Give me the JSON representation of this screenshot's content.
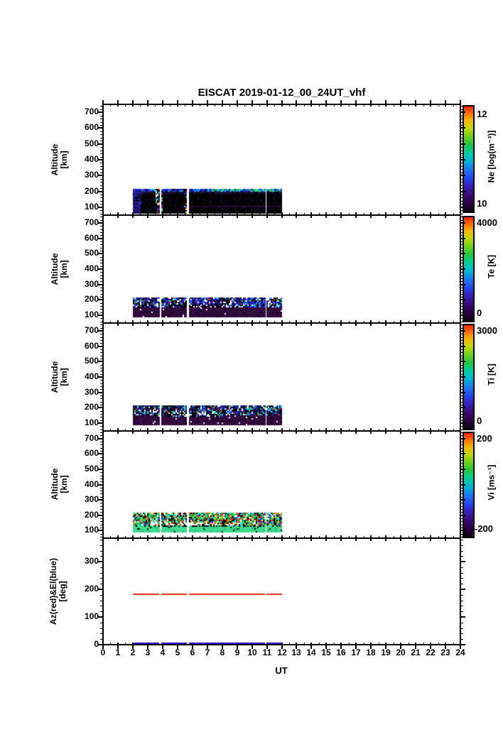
{
  "chart_data": {
    "type": "heatmap",
    "title": "EISCAT 2019-01-12_00_24UT_vhf",
    "xlabel": "UT",
    "x_range": [
      0,
      24
    ],
    "x_major_step": 1,
    "x_minor_step": 0.5,
    "x_tick_labels": [
      "0",
      "1",
      "2",
      "3",
      "4",
      "5",
      "6",
      "7",
      "8",
      "9",
      "10",
      "11",
      "12",
      "13",
      "14",
      "15",
      "16",
      "17",
      "18",
      "19",
      "20",
      "21",
      "22",
      "23",
      "24"
    ],
    "ut_extent": [
      2.0,
      12.0
    ],
    "gaps_ut": [
      [
        3.77,
        3.9
      ],
      [
        5.65,
        5.76
      ],
      [
        10.86,
        10.98
      ]
    ],
    "colormap": [
      {
        "pos": 0.0,
        "color": "#0d0015"
      },
      {
        "pos": 0.08,
        "color": "#2a0040"
      },
      {
        "pos": 0.16,
        "color": "#3c0a77"
      },
      {
        "pos": 0.24,
        "color": "#3520b8"
      },
      {
        "pos": 0.32,
        "color": "#2445ee"
      },
      {
        "pos": 0.4,
        "color": "#1e78f0"
      },
      {
        "pos": 0.48,
        "color": "#00b4d8"
      },
      {
        "pos": 0.56,
        "color": "#00cf9f"
      },
      {
        "pos": 0.64,
        "color": "#1fc741"
      },
      {
        "pos": 0.72,
        "color": "#74d11c"
      },
      {
        "pos": 0.8,
        "color": "#c6d60e"
      },
      {
        "pos": 0.87,
        "color": "#f5b50c"
      },
      {
        "pos": 0.93,
        "color": "#f97306"
      },
      {
        "pos": 1.0,
        "color": "#ee2409"
      }
    ],
    "panels": [
      {
        "name": "Ne",
        "ylabel_lines": [
          "Altitude",
          "[km]"
        ],
        "y_range": [
          50,
          750
        ],
        "y_tick_labels": [
          "100",
          "200",
          "300",
          "400",
          "500",
          "600",
          "700"
        ],
        "y_ticks": [
          100,
          200,
          300,
          400,
          500,
          600,
          700
        ],
        "y_minor_step": 20,
        "alt_extent": [
          65,
          214
        ],
        "colorbar": {
          "unit_label": "Ne [log(m⁻³)]",
          "max_label": "12",
          "min_label": "10",
          "range": [
            10,
            12
          ]
        },
        "bands": [
          {
            "alt": [
              65,
              183
            ],
            "palette": [
              [
                "#000000",
                0.8
              ],
              [
                "#0d0618",
                0.14
              ],
              [
                "#1f0b33",
                0.06
              ]
            ]
          },
          {
            "alt": [
              183,
              204
            ],
            "palette": [
              [
                "#05050f",
                0.45
              ],
              [
                "#15152f",
                0.3
              ],
              [
                "#26104a",
                0.25
              ]
            ]
          },
          {
            "alt": [
              204,
              214
            ],
            "ut": [
              2.0,
              7.2
            ],
            "palette": [
              [
                "#2233dd",
                0.45
              ],
              [
                "#1a1aaa",
                0.2
              ],
              [
                "#33bbee",
                0.15
              ],
              [
                "#000022",
                0.2
              ]
            ]
          },
          {
            "alt": [
              204,
              214
            ],
            "ut": [
              7.2,
              12.0
            ],
            "palette": [
              [
                "#22ddcc",
                0.3
              ],
              [
                "#33cc44",
                0.2
              ],
              [
                "#2233dd",
                0.3
              ],
              [
                "#55ee88",
                0.1
              ],
              [
                "#1a1aaa",
                0.1
              ]
            ]
          },
          {
            "alt": [
              98,
              110
            ],
            "ut": [
              5.8,
              12.0
            ],
            "palette": [
              [
                "#2a0d44",
                0.55
              ],
              [
                "#170726",
                0.45
              ]
            ]
          },
          {
            "alt": [
              65,
              205
            ],
            "ut": [
              2.0,
              2.6
            ],
            "palette": [
              [
                "#2222cc",
                0.3
              ],
              [
                "#311166",
                0.3
              ],
              [
                "#0a0a22",
                0.4
              ]
            ]
          },
          {
            "alt": [
              65,
              214
            ],
            "ut": [
              3.55,
              3.95
            ],
            "palette": [
              [
                "#000000",
                0.5
              ],
              [
                "#dd2211",
                0.08
              ],
              [
                "#33cc44",
                0.08
              ],
              [
                "#eeee33",
                0.05
              ],
              [
                "#ffffff",
                0.06
              ],
              [
                "#2233dd",
                0.13
              ],
              [
                "#22ddcc",
                0.1
              ]
            ]
          },
          {
            "alt": [
              65,
              214
            ],
            "ut": [
              5.45,
              5.68
            ],
            "palette": [
              [
                "#000000",
                0.5
              ],
              [
                "#dd2211",
                0.08
              ],
              [
                "#33cc44",
                0.08
              ],
              [
                "#eeee33",
                0.05
              ],
              [
                "#ffffff",
                0.06
              ],
              [
                "#2233dd",
                0.13
              ],
              [
                "#22ddcc",
                0.1
              ]
            ]
          }
        ]
      },
      {
        "name": "Te",
        "ylabel_lines": [
          "Altitude",
          "[km]"
        ],
        "y_range": [
          50,
          750
        ],
        "y_tick_labels": [
          "100",
          "200",
          "300",
          "400",
          "500",
          "600",
          "700"
        ],
        "y_ticks": [
          100,
          200,
          300,
          400,
          500,
          600,
          700
        ],
        "y_minor_step": 20,
        "alt_extent": [
          88,
          215
        ],
        "colorbar": {
          "unit_label": "Te [K]",
          "max_label": "4000",
          "min_label": "0",
          "range": [
            0,
            4000
          ]
        },
        "bands": [
          {
            "alt": [
              150,
              215
            ],
            "palette": [
              [
                "#2227c9",
                0.27
              ],
              [
                "#3a43ee",
                0.13
              ],
              [
                "#000000",
                0.2
              ],
              [
                "#ffffff",
                0.12
              ],
              [
                "#22bbdd",
                0.08
              ],
              [
                "#140a38",
                0.14
              ],
              [
                "#33cc55",
                0.04
              ],
              [
                "#dd2222",
                0.02
              ]
            ]
          },
          {
            "alt": [
              88,
              150
            ],
            "palette": [
              [
                "#2e0a3a",
                0.82
              ],
              [
                "#3b1149",
                0.12
              ],
              [
                "#000000",
                0.03
              ],
              [
                "#ffffff",
                0.03
              ]
            ]
          },
          {
            "alt": [
              150,
              172
            ],
            "ut": [
              4.4,
              8.4
            ],
            "palette": [
              [
                "#000000",
                0.55
              ],
              [
                "#ffffff",
                0.2
              ],
              [
                "#2227c9",
                0.15
              ],
              [
                "#140a38",
                0.1
              ]
            ]
          }
        ]
      },
      {
        "name": "Ti",
        "ylabel_lines": [
          "Altitude",
          "[km]"
        ],
        "y_range": [
          50,
          750
        ],
        "y_tick_labels": [
          "100",
          "200",
          "300",
          "400",
          "500",
          "600",
          "700"
        ],
        "y_ticks": [
          100,
          200,
          300,
          400,
          500,
          600,
          700
        ],
        "y_minor_step": 20,
        "alt_extent": [
          88,
          215
        ],
        "colorbar": {
          "unit_label": "Ti [K]",
          "max_label": "3000",
          "min_label": "0",
          "range": [
            0,
            3000
          ]
        },
        "bands": [
          {
            "alt": [
              150,
              215
            ],
            "palette": [
              [
                "#2233cc",
                0.22
              ],
              [
                "#000000",
                0.24
              ],
              [
                "#ffffff",
                0.1
              ],
              [
                "#33ccdd",
                0.1
              ],
              [
                "#33cc44",
                0.06
              ],
              [
                "#dd3311",
                0.03
              ],
              [
                "#1a0d44",
                0.25
              ]
            ]
          },
          {
            "alt": [
              88,
              150
            ],
            "palette": [
              [
                "#310a3d",
                0.83
              ],
              [
                "#41124e",
                0.1
              ],
              [
                "#000000",
                0.04
              ],
              [
                "#ffffff",
                0.03
              ]
            ]
          },
          {
            "alt": [
              148,
              170
            ],
            "ut": [
              4.3,
              8.0
            ],
            "palette": [
              [
                "#000000",
                0.5
              ],
              [
                "#ffffff",
                0.22
              ],
              [
                "#2233cc",
                0.18
              ],
              [
                "#33ccdd",
                0.1
              ]
            ]
          }
        ]
      },
      {
        "name": "Vi",
        "ylabel_lines": [
          "Altitude",
          "[km]"
        ],
        "y_range": [
          50,
          750
        ],
        "y_tick_labels": [
          "100",
          "200",
          "300",
          "400",
          "500",
          "600",
          "700"
        ],
        "y_ticks": [
          100,
          200,
          300,
          400,
          500,
          600,
          700
        ],
        "y_minor_step": 20,
        "alt_extent": [
          88,
          215
        ],
        "colorbar": {
          "unit_label": "Vi [ms⁻¹]",
          "max_label": "200",
          "min_label": "-200",
          "range": [
            -200,
            200
          ]
        },
        "bands": [
          {
            "alt": [
              130,
              215
            ],
            "palette": [
              [
                "#33cc44",
                0.2
              ],
              [
                "#22ddcc",
                0.17
              ],
              [
                "#dd2211",
                0.12
              ],
              [
                "#000000",
                0.17
              ],
              [
                "#ffffff",
                0.1
              ],
              [
                "#2233dd",
                0.08
              ],
              [
                "#ccdd22",
                0.05
              ],
              [
                "#ff8822",
                0.04
              ],
              [
                "#117733",
                0.07
              ]
            ]
          },
          {
            "alt": [
              130,
              154
            ],
            "ut": [
              3.2,
              9.2
            ],
            "palette": [
              [
                "#ffffff",
                0.45
              ],
              [
                "#dd2211",
                0.25
              ],
              [
                "#000000",
                0.15
              ],
              [
                "#33cc44",
                0.15
              ]
            ]
          },
          {
            "alt": [
              124,
              132
            ],
            "palette": [
              [
                "#000000",
                0.45
              ],
              [
                "#3fd98f",
                0.55
              ]
            ]
          },
          {
            "alt": [
              88,
              124
            ],
            "palette": [
              [
                "#3fd98f",
                0.86
              ],
              [
                "#2ab877",
                0.1
              ],
              [
                "#000000",
                0.04
              ]
            ]
          }
        ]
      },
      {
        "name": "AzEl",
        "ylabel_lines": [
          "Az(red)&El(blue)",
          "[deg]"
        ],
        "y_range": [
          0,
          385
        ],
        "y_tick_labels": [
          "0",
          "100",
          "200",
          "300"
        ],
        "y_ticks": [
          0,
          100,
          200,
          300
        ],
        "y_minor_step": 20,
        "lines": [
          {
            "name": "azimuth",
            "color": "#ee2211",
            "value_deg": 183
          },
          {
            "name": "elevation",
            "color": "#2a10c8",
            "value_deg": 2
          }
        ]
      }
    ]
  }
}
